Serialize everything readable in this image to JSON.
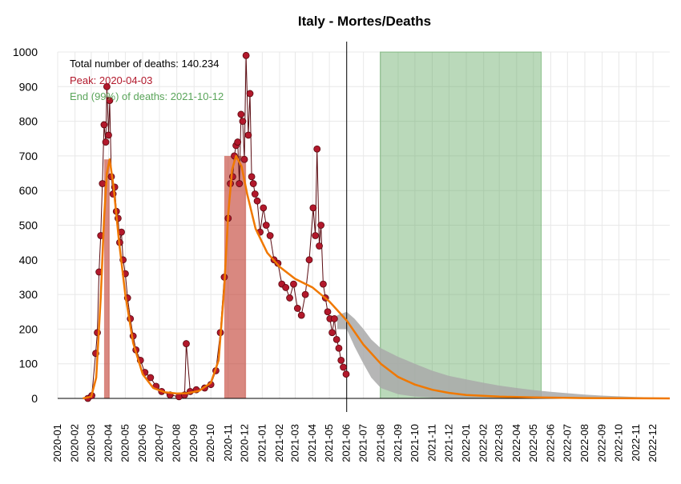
{
  "chart_data": {
    "type": "line",
    "title": "Italy - Mortes/Deaths",
    "xlabel": "",
    "ylabel": "",
    "ylim": [
      0,
      1000
    ],
    "yticks": [
      0,
      100,
      200,
      300,
      400,
      500,
      600,
      700,
      800,
      900,
      1000
    ],
    "x_range": [
      "2020-01-01",
      "2022-12-31"
    ],
    "xtick_labels": [
      "2020-01",
      "2020-02",
      "2020-03",
      "2020-04",
      "2020-05",
      "2020-06",
      "2020-07",
      "2020-08",
      "2020-09",
      "2020-10",
      "2020-11",
      "2020-12",
      "2021-01",
      "2021-02",
      "2021-03",
      "2021-04",
      "2021-05",
      "2021-06",
      "2021-07",
      "2021-08",
      "2021-09",
      "2021-10",
      "2021-11",
      "2021-12",
      "2022-01",
      "2022-02",
      "2022-03",
      "2022-04",
      "2022-05",
      "2022-06",
      "2022-07",
      "2022-08",
      "2022-09",
      "2022-10",
      "2022-11",
      "2022-12"
    ],
    "grid": true,
    "annotations": [
      {
        "id": "total",
        "text": "Total number of deaths: 140.234",
        "color": "#000000"
      },
      {
        "id": "peak",
        "text": "Peak: 2020-04-03",
        "color": "#b2182b"
      },
      {
        "id": "end",
        "text": "End (99%) of deaths: 2021-10-12",
        "color": "#5aa55a"
      }
    ],
    "vertical_line": {
      "date": "2021-06-01",
      "color": "#000000"
    },
    "shaded_regions": [
      {
        "start": "2020-03-24",
        "end": "2020-04-03",
        "color": "#c0392b"
      },
      {
        "start": "2020-10-25",
        "end": "2020-12-03",
        "color": "#c0392b"
      },
      {
        "start": "2021-07-31",
        "end": "2022-05-15",
        "color": "#5aa55a"
      }
    ],
    "series": [
      {
        "kind": "points",
        "color": "#b2182b",
        "x": [
          "2020-02-24",
          "2020-03-02",
          "2020-03-09",
          "2020-03-12",
          "2020-03-15",
          "2020-03-18",
          "2020-03-21",
          "2020-03-24",
          "2020-03-27",
          "2020-03-29",
          "2020-04-01",
          "2020-04-03",
          "2020-04-06",
          "2020-04-09",
          "2020-04-12",
          "2020-04-15",
          "2020-04-18",
          "2020-04-21",
          "2020-04-24",
          "2020-04-27",
          "2020-05-01",
          "2020-05-05",
          "2020-05-10",
          "2020-05-15",
          "2020-05-20",
          "2020-05-28",
          "2020-06-05",
          "2020-06-15",
          "2020-06-25",
          "2020-07-05",
          "2020-07-20",
          "2020-08-05",
          "2020-08-15",
          "2020-08-18",
          "2020-08-25",
          "2020-09-05",
          "2020-09-20",
          "2020-10-01",
          "2020-10-10",
          "2020-10-18",
          "2020-10-25",
          "2020-11-01",
          "2020-11-05",
          "2020-11-09",
          "2020-11-12",
          "2020-11-15",
          "2020-11-18",
          "2020-11-21",
          "2020-11-24",
          "2020-11-27",
          "2020-11-30",
          "2020-12-03",
          "2020-12-07",
          "2020-12-10",
          "2020-12-13",
          "2020-12-16",
          "2020-12-19",
          "2020-12-23",
          "2020-12-28",
          "2021-01-03",
          "2021-01-08",
          "2021-01-15",
          "2021-01-22",
          "2021-01-29",
          "2021-02-05",
          "2021-02-12",
          "2021-02-19",
          "2021-02-26",
          "2021-03-05",
          "2021-03-12",
          "2021-03-19",
          "2021-03-26",
          "2021-04-02",
          "2021-04-06",
          "2021-04-09",
          "2021-04-13",
          "2021-04-16",
          "2021-04-20",
          "2021-04-24",
          "2021-04-28",
          "2021-05-02",
          "2021-05-06",
          "2021-05-10",
          "2021-05-14",
          "2021-05-18",
          "2021-05-22",
          "2021-05-26",
          "2021-05-31"
        ],
        "y": [
          0,
          8,
          130,
          190,
          365,
          470,
          620,
          790,
          740,
          900,
          760,
          860,
          640,
          590,
          610,
          540,
          520,
          450,
          480,
          400,
          360,
          290,
          230,
          180,
          140,
          110,
          75,
          60,
          35,
          20,
          10,
          5,
          10,
          158,
          20,
          25,
          30,
          40,
          80,
          190,
          350,
          520,
          620,
          640,
          700,
          730,
          740,
          620,
          820,
          800,
          690,
          990,
          760,
          880,
          640,
          620,
          590,
          570,
          480,
          550,
          500,
          470,
          400,
          390,
          330,
          320,
          290,
          330,
          260,
          240,
          300,
          400,
          550,
          470,
          720,
          440,
          500,
          330,
          290,
          250,
          230,
          190,
          230,
          170,
          145,
          110,
          90,
          70
        ]
      },
      {
        "kind": "fitted_line",
        "color": "#f07800",
        "x": [
          "2020-02-15",
          "2020-03-01",
          "2020-03-10",
          "2020-03-18",
          "2020-03-24",
          "2020-03-29",
          "2020-04-03",
          "2020-04-10",
          "2020-04-20",
          "2020-05-01",
          "2020-05-15",
          "2020-06-01",
          "2020-06-20",
          "2020-07-10",
          "2020-08-01",
          "2020-08-20",
          "2020-09-10",
          "2020-10-01",
          "2020-10-15",
          "2020-10-25",
          "2020-11-01",
          "2020-11-08",
          "2020-11-15",
          "2020-11-25",
          "2020-12-05",
          "2020-12-20",
          "2021-01-10",
          "2021-02-01",
          "2021-03-01",
          "2021-04-01",
          "2021-05-01",
          "2021-06-01",
          "2021-07-01",
          "2021-08-01",
          "2021-09-01",
          "2021-10-01",
          "2021-11-01",
          "2021-12-01",
          "2022-01-01",
          "2022-03-01",
          "2022-05-01",
          "2022-08-01",
          "2022-12-31"
        ],
        "y": [
          0,
          5,
          60,
          290,
          520,
          650,
          690,
          610,
          450,
          300,
          160,
          70,
          30,
          18,
          14,
          15,
          22,
          45,
          110,
          320,
          530,
          660,
          700,
          670,
          590,
          490,
          420,
          380,
          345,
          320,
          280,
          225,
          155,
          100,
          62,
          40,
          25,
          16,
          10,
          5,
          3,
          1,
          0
        ]
      },
      {
        "kind": "projection_band",
        "color": "#a9a9a9",
        "x": [
          "2021-05-15",
          "2021-06-01",
          "2021-06-15",
          "2021-07-01",
          "2021-07-15",
          "2021-08-01",
          "2021-09-01",
          "2021-10-01",
          "2021-11-01",
          "2021-12-01",
          "2022-01-01",
          "2022-02-01",
          "2022-03-01",
          "2022-04-01",
          "2022-05-01",
          "2022-06-01",
          "2022-07-01",
          "2022-08-01",
          "2022-09-01",
          "2022-10-01",
          "2022-11-01",
          "2022-12-01",
          "2022-12-31"
        ],
        "upper": [
          240,
          250,
          230,
          200,
          170,
          145,
          120,
          100,
          80,
          65,
          55,
          45,
          37,
          30,
          24,
          19,
          15,
          11,
          8,
          6,
          4,
          3,
          2
        ],
        "lower": [
          200,
          200,
          150,
          100,
          60,
          30,
          12,
          5,
          2,
          1,
          0,
          0,
          0,
          0,
          0,
          0,
          0,
          0,
          0,
          0,
          0,
          0,
          0
        ]
      }
    ]
  }
}
